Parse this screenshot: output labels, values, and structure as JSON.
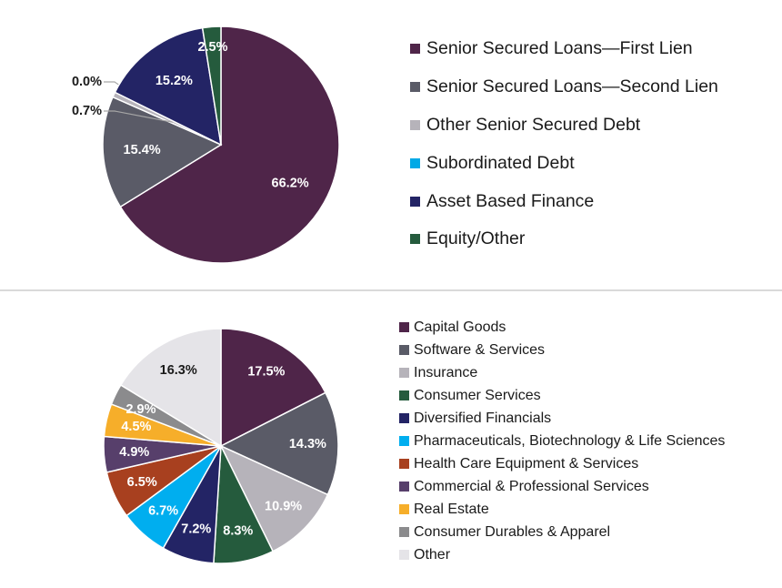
{
  "chart_data": [
    {
      "type": "pie",
      "title": "",
      "categories": [
        "Senior Secured Loans—First Lien",
        "Senior Secured Loans—Second Lien",
        "Other Senior Secured Debt",
        "Subordinated Debt",
        "Asset Based Finance",
        "Equity/Other"
      ],
      "values": [
        66.2,
        15.4,
        0.7,
        0.0,
        15.2,
        2.5
      ],
      "labels": [
        "66.2%",
        "15.4%",
        "0.7%",
        "0.0%",
        "15.2%",
        "2.5%"
      ],
      "colors": [
        "#4f2549",
        "#5a5b67",
        "#b6b3ba",
        "#00a9e6",
        "#232465",
        "#255b3d"
      ],
      "legend": "right"
    },
    {
      "type": "pie",
      "title": "",
      "categories": [
        "Capital Goods",
        "Software & Services",
        "Insurance",
        "Consumer Services",
        "Diversified Financials",
        "Pharmaceuticals, Biotechnology & Life Sciences",
        "Health Care Equipment & Services",
        "Commercial & Professional Services",
        "Real Estate",
        "Consumer Durables & Apparel",
        "Other"
      ],
      "values": [
        17.5,
        14.3,
        10.9,
        8.3,
        7.2,
        6.7,
        6.5,
        4.9,
        4.5,
        2.9,
        16.3
      ],
      "labels": [
        "17.5%",
        "14.3%",
        "10.9%",
        "8.3%",
        "7.2%",
        "6.7%",
        "6.5%",
        "4.9%",
        "4.5%",
        "2.9%",
        "16.3%"
      ],
      "colors": [
        "#4f2549",
        "#5a5b67",
        "#b6b3ba",
        "#255b3d",
        "#232465",
        "#00aeef",
        "#a8401f",
        "#573f6b",
        "#f6ae2a",
        "#8b8b8d",
        "#e5e4e8"
      ],
      "legend": "right"
    }
  ]
}
